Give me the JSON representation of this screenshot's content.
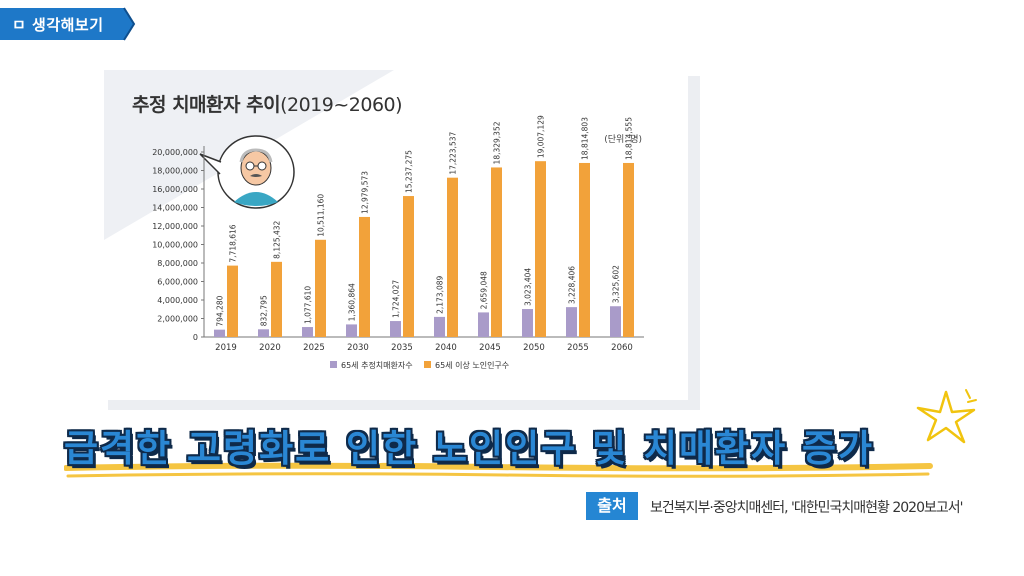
{
  "section_tag": {
    "label": "ㅁ 생각해보기",
    "color": "#1e78c8"
  },
  "chart_data": {
    "type": "bar",
    "title_main": "추정 치매환자 추이",
    "title_range": "(2019~2060)",
    "unit_label": "(단위: 명)",
    "categories": [
      "2019",
      "2020",
      "2025",
      "2030",
      "2035",
      "2040",
      "2045",
      "2050",
      "2055",
      "2060"
    ],
    "series": [
      {
        "name": "65세 추정치매환자수",
        "color": "#a99bc9",
        "values": [
          794280,
          832795,
          1077610,
          1360864,
          1724027,
          2173089,
          2659048,
          3023404,
          3228406,
          3325602
        ],
        "labels": [
          "794,280",
          "832,795",
          "1,077,610",
          "1,360,864",
          "1,724,027",
          "2,173,089",
          "2,659,048",
          "3,023,404",
          "3,228,406",
          "3,325,602"
        ]
      },
      {
        "name": "65세 이상 노인인구수",
        "color": "#f2a23a",
        "values": [
          7718616,
          8125432,
          10511160,
          12979573,
          15237275,
          17223537,
          18329352,
          19007129,
          18814803,
          18814555
        ],
        "labels": [
          "7,718,616",
          "8,125,432",
          "10,511,160",
          "12,979,573",
          "15,237,275",
          "17,223,537",
          "18,329,352",
          "19,007,129",
          "18,814,803",
          "18,814,555"
        ]
      }
    ],
    "ylim": [
      0,
      20000000
    ],
    "y_ticks": [
      0,
      2000000,
      4000000,
      6000000,
      8000000,
      10000000,
      12000000,
      14000000,
      16000000,
      18000000,
      20000000
    ],
    "y_tick_labels": [
      "0",
      "2,000,000",
      "4,000,000",
      "6,000,000",
      "8,000,000",
      "10,000,000",
      "12,000,000",
      "14,000,000",
      "16,000,000",
      "18,000,000",
      "20,000,000"
    ],
    "legend_position": "bottom-center",
    "grid": false
  },
  "headline": {
    "text": "급격한 고령화로 인한 노인인구 및 치매환자 증가",
    "color": "#2a87d4"
  },
  "source": {
    "badge": "출처",
    "text": "보건복지부·중앙치매센터, '대한민국치매현황 2020보고서'"
  },
  "icons": {
    "tag": "ribbon-tag",
    "mascot": "elderly-man-icon",
    "star": "doodle-star-icon"
  }
}
